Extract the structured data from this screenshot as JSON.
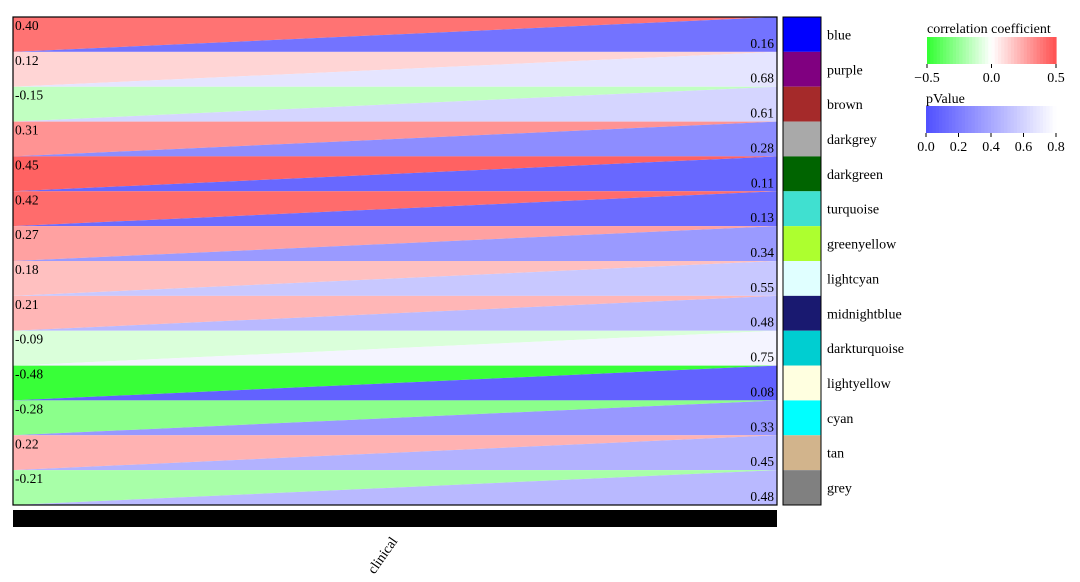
{
  "chart_data": {
    "type": "heatmap",
    "xlabel": "clinical",
    "rows": [
      {
        "module": "blue",
        "module_color": "#0000ff",
        "cor": 0.4,
        "pvalue": 0.16,
        "cor_label": "0.40",
        "p_label": "0.16"
      },
      {
        "module": "purple",
        "module_color": "#800080",
        "cor": 0.12,
        "pvalue": 0.68,
        "cor_label": "0.12",
        "p_label": "0.68"
      },
      {
        "module": "brown",
        "module_color": "#a52a2a",
        "cor": -0.15,
        "pvalue": 0.61,
        "cor_label": "-0.15",
        "p_label": "0.61"
      },
      {
        "module": "darkgrey",
        "module_color": "#a9a9a9",
        "cor": 0.31,
        "pvalue": 0.28,
        "cor_label": "0.31",
        "p_label": "0.28"
      },
      {
        "module": "darkgreen",
        "module_color": "#006400",
        "cor": 0.45,
        "pvalue": 0.11,
        "cor_label": "0.45",
        "p_label": "0.11"
      },
      {
        "module": "turquoise",
        "module_color": "#40e0d0",
        "cor": 0.42,
        "pvalue": 0.13,
        "cor_label": "0.42",
        "p_label": "0.13"
      },
      {
        "module": "greenyellow",
        "module_color": "#adff2f",
        "cor": 0.27,
        "pvalue": 0.34,
        "cor_label": "0.27",
        "p_label": "0.34"
      },
      {
        "module": "lightcyan",
        "module_color": "#e0ffff",
        "cor": 0.18,
        "pvalue": 0.55,
        "cor_label": "0.18",
        "p_label": "0.55"
      },
      {
        "module": "midnightblue",
        "module_color": "#191970",
        "cor": 0.21,
        "pvalue": 0.48,
        "cor_label": "0.21",
        "p_label": "0.48"
      },
      {
        "module": "darkturquoise",
        "module_color": "#00ced1",
        "cor": -0.09,
        "pvalue": 0.75,
        "cor_label": "-0.09",
        "p_label": "0.75"
      },
      {
        "module": "lightyellow",
        "module_color": "#ffffe0",
        "cor": -0.48,
        "pvalue": 0.08,
        "cor_label": "-0.48",
        "p_label": "0.08"
      },
      {
        "module": "cyan",
        "module_color": "#00ffff",
        "cor": -0.28,
        "pvalue": 0.33,
        "cor_label": "-0.28",
        "p_label": "0.33"
      },
      {
        "module": "tan",
        "module_color": "#d2b48c",
        "cor": 0.22,
        "pvalue": 0.45,
        "cor_label": "0.22",
        "p_label": "0.45"
      },
      {
        "module": "grey",
        "module_color": "#808080",
        "cor": -0.21,
        "pvalue": 0.48,
        "cor_label": "-0.21",
        "p_label": "0.48"
      }
    ],
    "legend_cor": {
      "title": "correlation coefficient",
      "range": [
        -0.5,
        0.5
      ],
      "ticks": [
        "−0.5",
        "0.0",
        "0.5"
      ],
      "low_color": "#00ff00",
      "mid_color": "#ffffff",
      "high_color": "#ff0000"
    },
    "legend_p": {
      "title": "pValue",
      "range": [
        0,
        0.8
      ],
      "ticks": [
        "0.0",
        "0.2",
        "0.4",
        "0.6",
        "0.8"
      ],
      "low_color": "#0000ff",
      "high_color": "#ffffff"
    },
    "cor_max_abs": 0.5,
    "p_max": 0.8
  }
}
